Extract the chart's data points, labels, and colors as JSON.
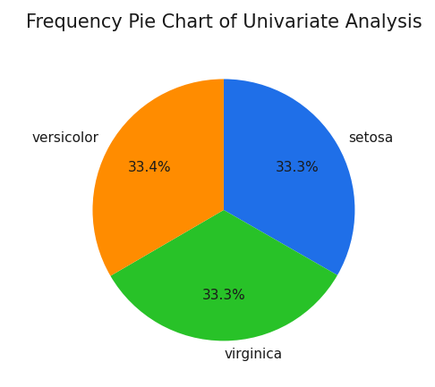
{
  "title": "Frequency Pie Chart of Univariate Analysis",
  "labels": [
    "setosa",
    "virginica",
    "versicolor"
  ],
  "sizes": [
    33.3,
    33.3,
    33.4
  ],
  "colors": [
    "#1f6fe8",
    "#28c228",
    "#ff8c00"
  ],
  "startangle": 90,
  "title_fontsize": 15,
  "label_fontsize": 11,
  "pct_fontsize": 11,
  "pct_color": "#1a1a1a",
  "background_color": "#ffffff",
  "pctdistance": 0.65,
  "labeldistance": 1.1
}
